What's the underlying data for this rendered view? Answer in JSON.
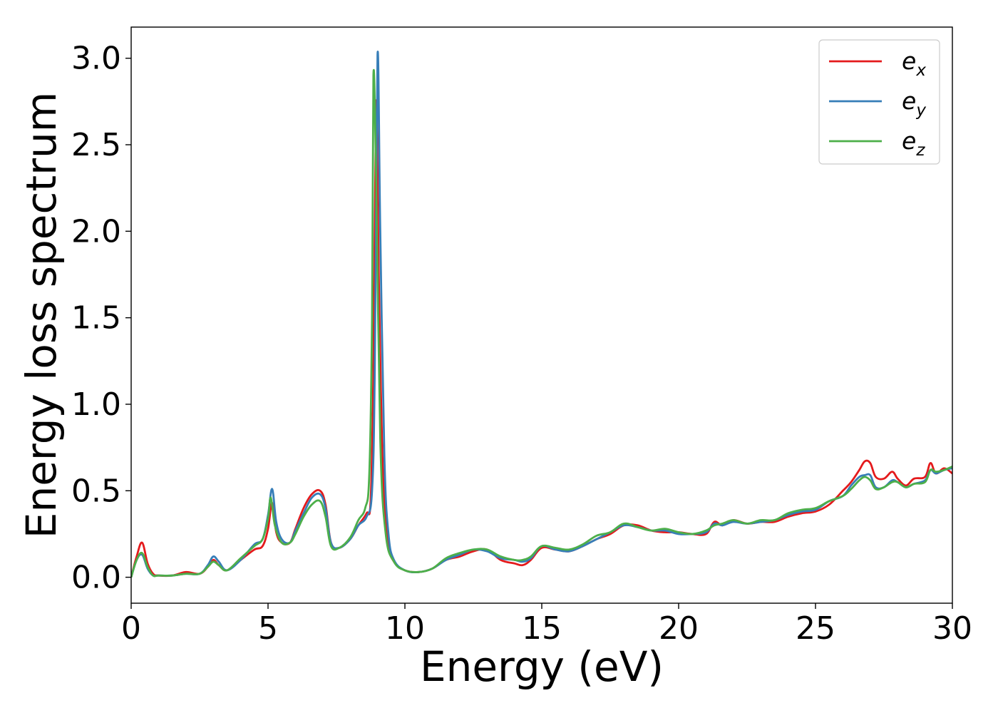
{
  "chart_data": {
    "type": "line",
    "title": "",
    "xlabel": "Energy (eV)",
    "ylabel": "Energy loss spectrum",
    "xlim": [
      0,
      30
    ],
    "ylim": [
      -0.15,
      3.18
    ],
    "xticks": [
      0,
      5,
      10,
      15,
      20,
      25,
      30
    ],
    "yticks": [
      0.0,
      0.5,
      1.0,
      1.5,
      2.0,
      2.5,
      3.0
    ],
    "xtick_labels": [
      "0",
      "5",
      "10",
      "15",
      "20",
      "25",
      "30"
    ],
    "ytick_labels": [
      "0.0",
      "0.5",
      "1.0",
      "1.5",
      "2.0",
      "2.5",
      "3.0"
    ],
    "grid": false,
    "legend_position": "top-right",
    "series": [
      {
        "name": "e_x",
        "label_base": "e",
        "label_sub": "x",
        "color": "#e41a1c",
        "x": [
          0,
          0.2,
          0.4,
          0.6,
          0.8,
          1.0,
          1.5,
          2.0,
          2.5,
          2.8,
          3.0,
          3.2,
          3.5,
          4.0,
          4.5,
          4.8,
          5.0,
          5.15,
          5.3,
          5.5,
          5.8,
          6.0,
          6.3,
          6.6,
          6.9,
          7.1,
          7.3,
          7.6,
          8.0,
          8.3,
          8.6,
          8.75,
          8.85,
          8.95,
          9.05,
          9.2,
          9.4,
          9.6,
          10.0,
          10.5,
          11.0,
          11.5,
          12.0,
          12.5,
          13.0,
          13.5,
          14.0,
          14.3,
          14.6,
          15.0,
          15.5,
          16.0,
          16.5,
          17.0,
          17.5,
          18.0,
          18.5,
          19.0,
          19.5,
          20.0,
          20.5,
          21.0,
          21.3,
          21.6,
          22.0,
          22.5,
          23.0,
          23.5,
          24.0,
          24.5,
          25.0,
          25.5,
          26.0,
          26.3,
          26.6,
          26.8,
          27.0,
          27.2,
          27.5,
          27.8,
          28.0,
          28.3,
          28.6,
          29.0,
          29.2,
          29.4,
          29.7,
          30.0
        ],
        "y": [
          0.0,
          0.12,
          0.2,
          0.08,
          0.02,
          0.01,
          0.01,
          0.03,
          0.02,
          0.06,
          0.1,
          0.07,
          0.04,
          0.1,
          0.16,
          0.18,
          0.28,
          0.43,
          0.26,
          0.2,
          0.2,
          0.28,
          0.4,
          0.48,
          0.5,
          0.42,
          0.2,
          0.17,
          0.22,
          0.3,
          0.37,
          0.45,
          1.2,
          2.75,
          1.7,
          0.6,
          0.2,
          0.09,
          0.04,
          0.03,
          0.05,
          0.1,
          0.12,
          0.15,
          0.16,
          0.1,
          0.08,
          0.07,
          0.1,
          0.17,
          0.16,
          0.15,
          0.18,
          0.22,
          0.25,
          0.3,
          0.3,
          0.27,
          0.26,
          0.26,
          0.25,
          0.25,
          0.32,
          0.3,
          0.33,
          0.31,
          0.32,
          0.32,
          0.35,
          0.37,
          0.38,
          0.42,
          0.5,
          0.55,
          0.62,
          0.67,
          0.66,
          0.58,
          0.57,
          0.61,
          0.57,
          0.53,
          0.57,
          0.58,
          0.66,
          0.6,
          0.63,
          0.6
        ]
      },
      {
        "name": "e_y",
        "label_base": "e",
        "label_sub": "y",
        "color": "#377eb8",
        "x": [
          0,
          0.2,
          0.4,
          0.6,
          0.8,
          1.0,
          1.5,
          2.0,
          2.5,
          2.8,
          3.0,
          3.2,
          3.5,
          4.0,
          4.5,
          4.8,
          5.0,
          5.15,
          5.3,
          5.5,
          5.8,
          6.0,
          6.3,
          6.6,
          6.9,
          7.1,
          7.3,
          7.6,
          8.0,
          8.3,
          8.6,
          8.8,
          8.9,
          9.0,
          9.1,
          9.25,
          9.4,
          9.6,
          10.0,
          10.5,
          11.0,
          11.5,
          12.0,
          12.5,
          13.0,
          13.5,
          14.0,
          14.3,
          14.6,
          15.0,
          15.5,
          16.0,
          16.5,
          17.0,
          17.5,
          18.0,
          18.5,
          19.0,
          19.5,
          20.0,
          20.5,
          21.0,
          21.3,
          21.6,
          22.0,
          22.5,
          23.0,
          23.5,
          24.0,
          24.5,
          25.0,
          25.5,
          26.0,
          26.3,
          26.6,
          26.8,
          27.0,
          27.2,
          27.5,
          27.8,
          28.0,
          28.3,
          28.6,
          29.0,
          29.2,
          29.4,
          29.7,
          30.0
        ],
        "y": [
          0.0,
          0.1,
          0.13,
          0.05,
          0.01,
          0.01,
          0.01,
          0.02,
          0.02,
          0.07,
          0.12,
          0.09,
          0.04,
          0.1,
          0.19,
          0.22,
          0.36,
          0.51,
          0.32,
          0.22,
          0.2,
          0.27,
          0.37,
          0.46,
          0.48,
          0.4,
          0.2,
          0.17,
          0.22,
          0.3,
          0.35,
          0.5,
          1.2,
          3.02,
          2.0,
          0.7,
          0.25,
          0.1,
          0.04,
          0.03,
          0.05,
          0.1,
          0.13,
          0.16,
          0.15,
          0.11,
          0.1,
          0.09,
          0.11,
          0.18,
          0.16,
          0.15,
          0.18,
          0.22,
          0.26,
          0.3,
          0.29,
          0.27,
          0.27,
          0.25,
          0.25,
          0.26,
          0.31,
          0.3,
          0.32,
          0.31,
          0.32,
          0.33,
          0.36,
          0.38,
          0.39,
          0.44,
          0.47,
          0.53,
          0.58,
          0.59,
          0.59,
          0.52,
          0.52,
          0.56,
          0.55,
          0.52,
          0.54,
          0.56,
          0.62,
          0.6,
          0.62,
          0.63
        ]
      },
      {
        "name": "e_z",
        "label_base": "e",
        "label_sub": "z",
        "color": "#4daf4a",
        "x": [
          0,
          0.2,
          0.4,
          0.6,
          0.8,
          1.0,
          1.5,
          2.0,
          2.5,
          2.8,
          3.0,
          3.2,
          3.5,
          4.0,
          4.5,
          4.8,
          5.0,
          5.1,
          5.25,
          5.5,
          5.8,
          6.0,
          6.3,
          6.6,
          6.9,
          7.1,
          7.3,
          7.6,
          8.0,
          8.3,
          8.55,
          8.7,
          8.8,
          8.85,
          8.95,
          9.1,
          9.3,
          9.6,
          10.0,
          10.5,
          11.0,
          11.5,
          12.0,
          12.5,
          13.0,
          13.5,
          14.0,
          14.3,
          14.6,
          15.0,
          15.5,
          16.0,
          16.5,
          17.0,
          17.5,
          18.0,
          18.5,
          19.0,
          19.5,
          20.0,
          20.5,
          21.0,
          21.3,
          21.6,
          22.0,
          22.5,
          23.0,
          23.5,
          24.0,
          24.5,
          25.0,
          25.5,
          26.0,
          26.3,
          26.6,
          26.8,
          27.0,
          27.2,
          27.5,
          27.8,
          28.0,
          28.3,
          28.6,
          29.0,
          29.2,
          29.4,
          29.7,
          30.0
        ],
        "y": [
          0.0,
          0.1,
          0.14,
          0.06,
          0.01,
          0.01,
          0.01,
          0.02,
          0.02,
          0.06,
          0.09,
          0.07,
          0.04,
          0.11,
          0.18,
          0.22,
          0.34,
          0.46,
          0.3,
          0.2,
          0.2,
          0.25,
          0.35,
          0.42,
          0.44,
          0.35,
          0.18,
          0.17,
          0.23,
          0.33,
          0.4,
          0.6,
          1.5,
          2.9,
          2.3,
          0.8,
          0.25,
          0.09,
          0.04,
          0.03,
          0.05,
          0.11,
          0.14,
          0.16,
          0.16,
          0.12,
          0.1,
          0.1,
          0.12,
          0.18,
          0.17,
          0.16,
          0.19,
          0.24,
          0.26,
          0.31,
          0.29,
          0.27,
          0.28,
          0.26,
          0.25,
          0.27,
          0.3,
          0.31,
          0.33,
          0.31,
          0.33,
          0.33,
          0.37,
          0.39,
          0.4,
          0.44,
          0.47,
          0.51,
          0.56,
          0.58,
          0.56,
          0.51,
          0.52,
          0.55,
          0.55,
          0.52,
          0.54,
          0.55,
          0.62,
          0.61,
          0.62,
          0.64
        ]
      }
    ]
  }
}
